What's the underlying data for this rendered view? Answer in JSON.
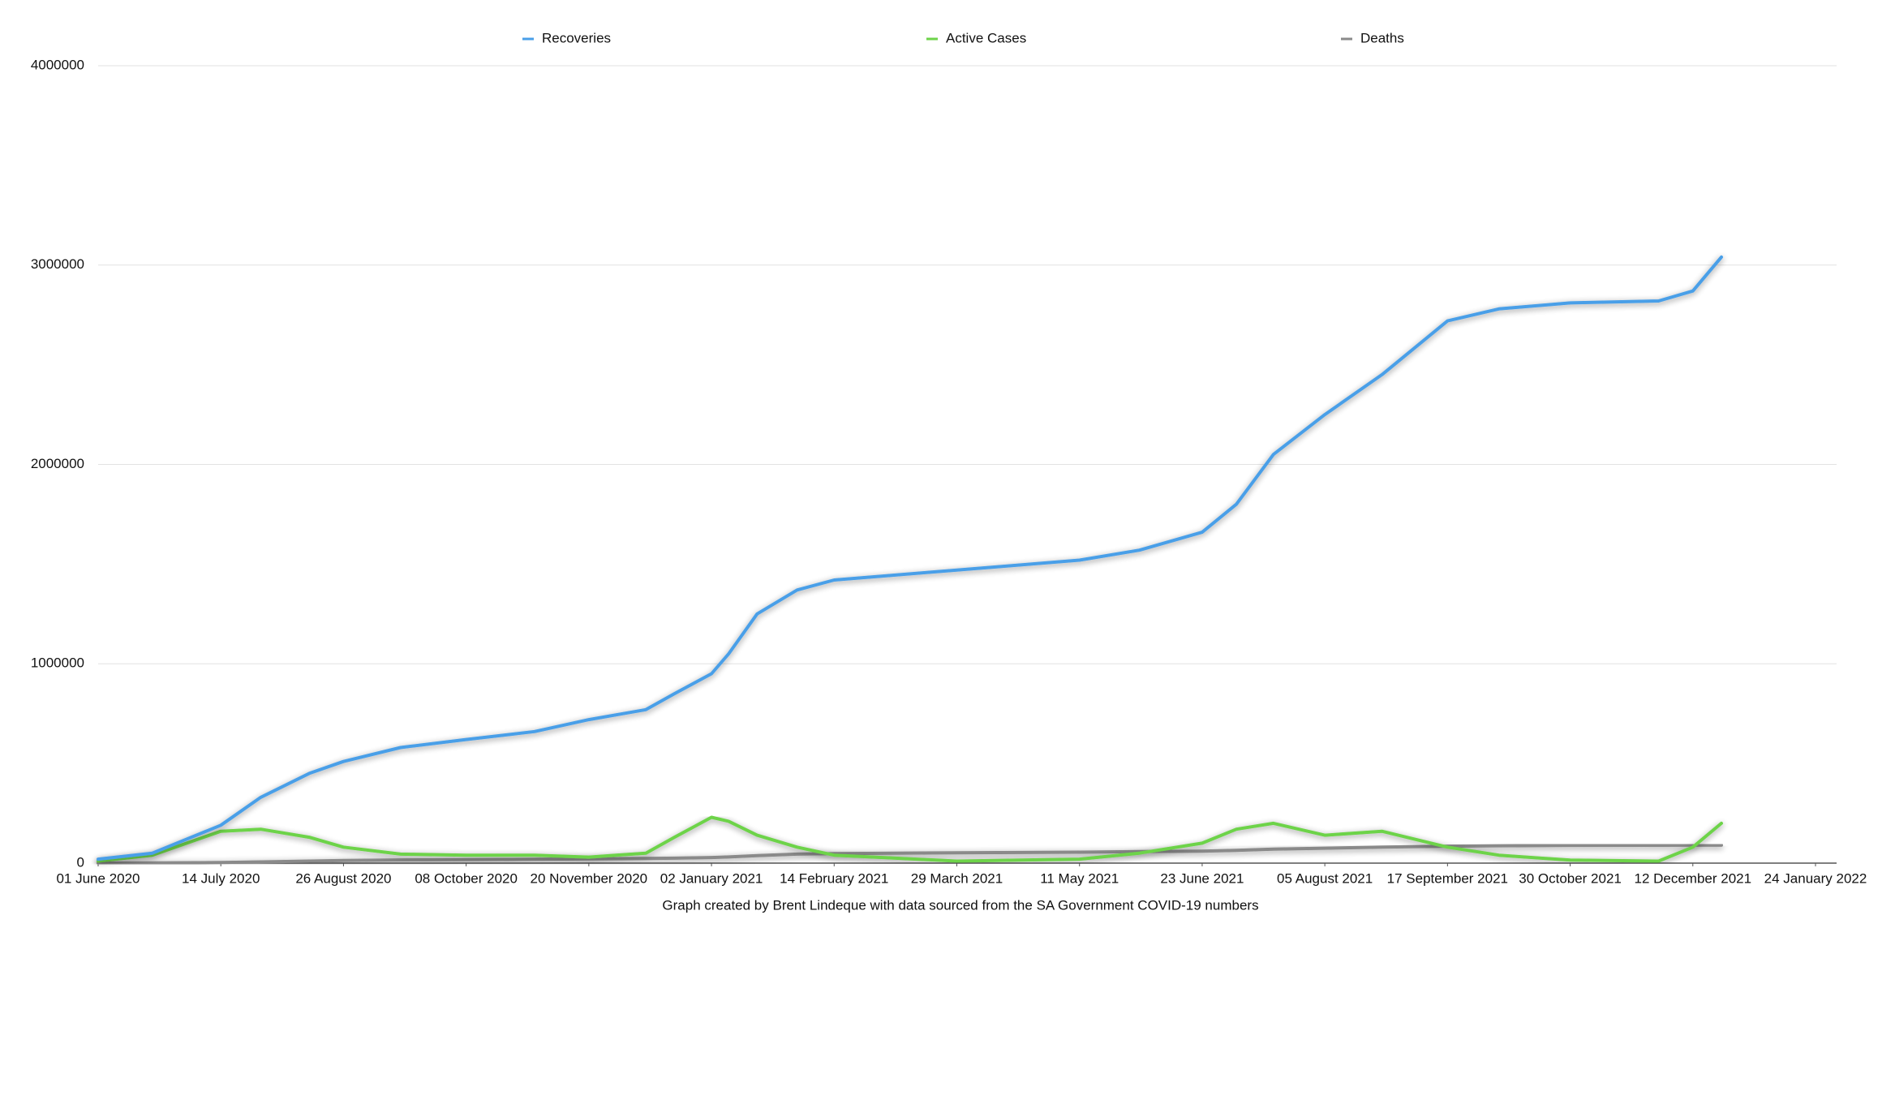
{
  "chart_data": {
    "type": "line",
    "caption": "Graph created by Brent Lindeque with data sourced from the SA Government COVID-19 numbers",
    "x": [
      "2020-06-01",
      "2020-06-20",
      "2020-07-14",
      "2020-07-28",
      "2020-08-14",
      "2020-08-26",
      "2020-09-15",
      "2020-10-08",
      "2020-11-01",
      "2020-11-20",
      "2020-12-10",
      "2020-12-20",
      "2021-01-02",
      "2021-01-08",
      "2021-01-18",
      "2021-02-01",
      "2021-02-14",
      "2021-03-29",
      "2021-05-11",
      "2021-06-01",
      "2021-06-23",
      "2021-07-05",
      "2021-07-18",
      "2021-08-05",
      "2021-08-25",
      "2021-09-17",
      "2021-10-05",
      "2021-10-30",
      "2021-11-30",
      "2021-12-12",
      "2021-12-22"
    ],
    "series": [
      {
        "name": "Recoveries",
        "color": "#4a9fe8",
        "values": [
          20000,
          50000,
          190000,
          330000,
          450000,
          510000,
          580000,
          620000,
          660000,
          720000,
          770000,
          850000,
          950000,
          1050000,
          1250000,
          1370000,
          1420000,
          1470000,
          1520000,
          1570000,
          1660000,
          1800000,
          2050000,
          2250000,
          2450000,
          2720000,
          2780000,
          2810000,
          2820000,
          2870000,
          3040000
        ]
      },
      {
        "name": "Active Cases",
        "color": "#6dd34a",
        "values": [
          10000,
          40000,
          160000,
          170000,
          130000,
          80000,
          45000,
          40000,
          40000,
          30000,
          50000,
          130000,
          230000,
          210000,
          140000,
          80000,
          40000,
          10000,
          20000,
          50000,
          100000,
          170000,
          200000,
          140000,
          160000,
          80000,
          40000,
          15000,
          10000,
          80000,
          200000
        ]
      },
      {
        "name": "Deaths",
        "color": "#8a8a8a",
        "values": [
          0,
          1000,
          3000,
          6000,
          10000,
          13000,
          16000,
          17000,
          19000,
          21000,
          23000,
          25000,
          28000,
          31000,
          38000,
          45000,
          48000,
          52000,
          55000,
          58000,
          60000,
          64000,
          70000,
          75000,
          80000,
          85000,
          87000,
          89000,
          89500,
          90000,
          90000
        ]
      }
    ],
    "xlim": [
      "2020-06-01",
      "2022-01-24"
    ],
    "xticks": [
      {
        "value": "2020-06-01",
        "label": "01 June 2020"
      },
      {
        "value": "2020-07-14",
        "label": "14 July 2020"
      },
      {
        "value": "2020-08-26",
        "label": "26 August 2020"
      },
      {
        "value": "2020-10-08",
        "label": "08 October 2020"
      },
      {
        "value": "2020-11-20",
        "label": "20 November 2020"
      },
      {
        "value": "2021-01-02",
        "label": "02 January 2021"
      },
      {
        "value": "2021-02-14",
        "label": "14 February 2021"
      },
      {
        "value": "2021-03-29",
        "label": "29 March 2021"
      },
      {
        "value": "2021-05-11",
        "label": "11 May 2021"
      },
      {
        "value": "2021-06-23",
        "label": "23 June 2021"
      },
      {
        "value": "2021-08-05",
        "label": "05 August 2021"
      },
      {
        "value": "2021-09-17",
        "label": "17 September 2021"
      },
      {
        "value": "2021-10-30",
        "label": "30 October 2021"
      },
      {
        "value": "2021-12-12",
        "label": "12 December 2021"
      },
      {
        "value": "2022-01-24",
        "label": "24 January 2022"
      }
    ],
    "ylim": [
      0,
      4000000
    ],
    "yticks": [
      0,
      1000000,
      2000000,
      3000000,
      4000000
    ],
    "grid": true
  }
}
